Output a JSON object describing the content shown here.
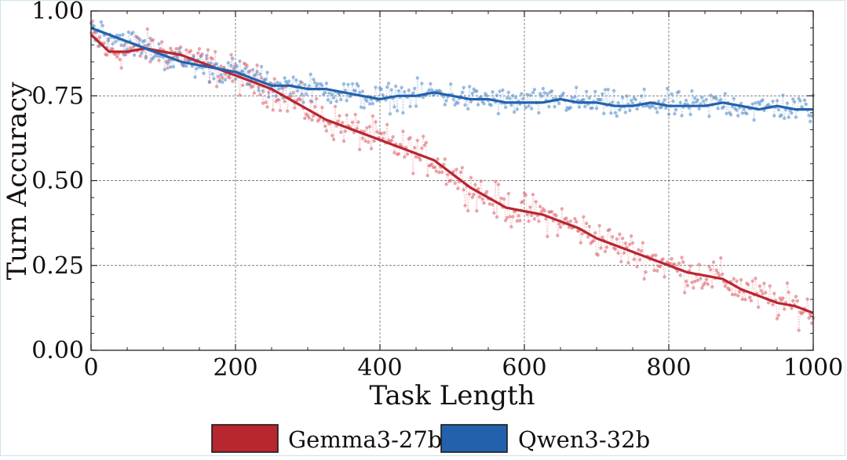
{
  "chart_data": {
    "type": "line",
    "xlabel": "Task Length",
    "ylabel": "Turn Accuracy",
    "xlim": [
      0,
      1000
    ],
    "ylim": [
      0,
      1
    ],
    "grid": true,
    "legend_position": "bottom-center",
    "xticks": [
      0,
      200,
      400,
      600,
      800,
      1000
    ],
    "xtick_labels": [
      "0",
      "200",
      "400",
      "600",
      "800",
      "1000"
    ],
    "yticks": [
      0,
      0.25,
      0.5,
      0.75,
      1.0
    ],
    "ytick_labels": [
      "0.00",
      "0.25",
      "0.50",
      "0.75",
      "1.00"
    ],
    "x": [
      0,
      25,
      50,
      75,
      100,
      125,
      150,
      175,
      200,
      225,
      250,
      275,
      300,
      325,
      350,
      375,
      400,
      425,
      450,
      475,
      500,
      525,
      550,
      575,
      600,
      625,
      650,
      675,
      700,
      725,
      750,
      775,
      800,
      825,
      850,
      875,
      900,
      925,
      950,
      975,
      1000
    ],
    "series": [
      {
        "name": "Gemma3-27b",
        "color": "#b8262f",
        "values": [
          0.93,
          0.88,
          0.88,
          0.89,
          0.88,
          0.87,
          0.85,
          0.83,
          0.81,
          0.79,
          0.77,
          0.74,
          0.71,
          0.68,
          0.66,
          0.64,
          0.62,
          0.6,
          0.58,
          0.56,
          0.52,
          0.48,
          0.45,
          0.42,
          0.41,
          0.4,
          0.38,
          0.36,
          0.33,
          0.31,
          0.29,
          0.27,
          0.25,
          0.23,
          0.22,
          0.21,
          0.18,
          0.16,
          0.14,
          0.13,
          0.11
        ]
      },
      {
        "name": "Qwen3-32b",
        "color": "#2361ad",
        "values": [
          0.95,
          0.93,
          0.91,
          0.89,
          0.87,
          0.85,
          0.84,
          0.83,
          0.82,
          0.8,
          0.78,
          0.78,
          0.77,
          0.77,
          0.76,
          0.75,
          0.74,
          0.75,
          0.75,
          0.76,
          0.75,
          0.74,
          0.74,
          0.73,
          0.73,
          0.73,
          0.74,
          0.73,
          0.73,
          0.72,
          0.72,
          0.73,
          0.72,
          0.72,
          0.72,
          0.73,
          0.72,
          0.71,
          0.72,
          0.71,
          0.71
        ]
      }
    ]
  }
}
